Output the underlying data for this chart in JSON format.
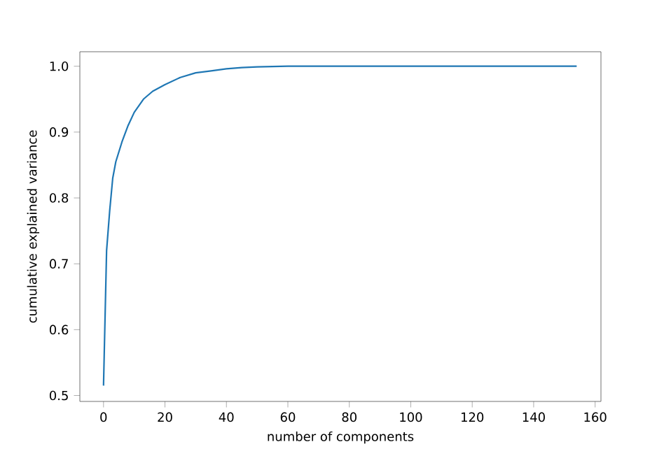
{
  "chart_data": {
    "type": "line",
    "xlabel": "number of components",
    "ylabel": "cumulative explained variance",
    "x": [
      0,
      1,
      2,
      3,
      4,
      5,
      6,
      8,
      10,
      13,
      16,
      20,
      25,
      30,
      35,
      40,
      45,
      50,
      60,
      80,
      100,
      120,
      140,
      154
    ],
    "series": [
      {
        "color": "#1f77b4",
        "values": [
          0.515,
          0.72,
          0.78,
          0.83,
          0.855,
          0.87,
          0.885,
          0.91,
          0.93,
          0.95,
          0.962,
          0.972,
          0.983,
          0.99,
          0.993,
          0.996,
          0.998,
          0.999,
          1.0,
          1.0,
          1.0,
          1.0,
          1.0,
          1.0
        ]
      }
    ],
    "xlim": [
      -7.7,
      161.9
    ],
    "ylim": [
      0.491,
      1.022
    ],
    "xticks": [
      0,
      20,
      40,
      60,
      80,
      100,
      120,
      140,
      160
    ],
    "yticks": [
      0.5,
      0.6,
      0.7,
      0.8,
      0.9,
      {
        "value": 1.0,
        "label": "1.0"
      }
    ],
    "grid": false,
    "marker": "none",
    "line_style": "solid"
  }
}
